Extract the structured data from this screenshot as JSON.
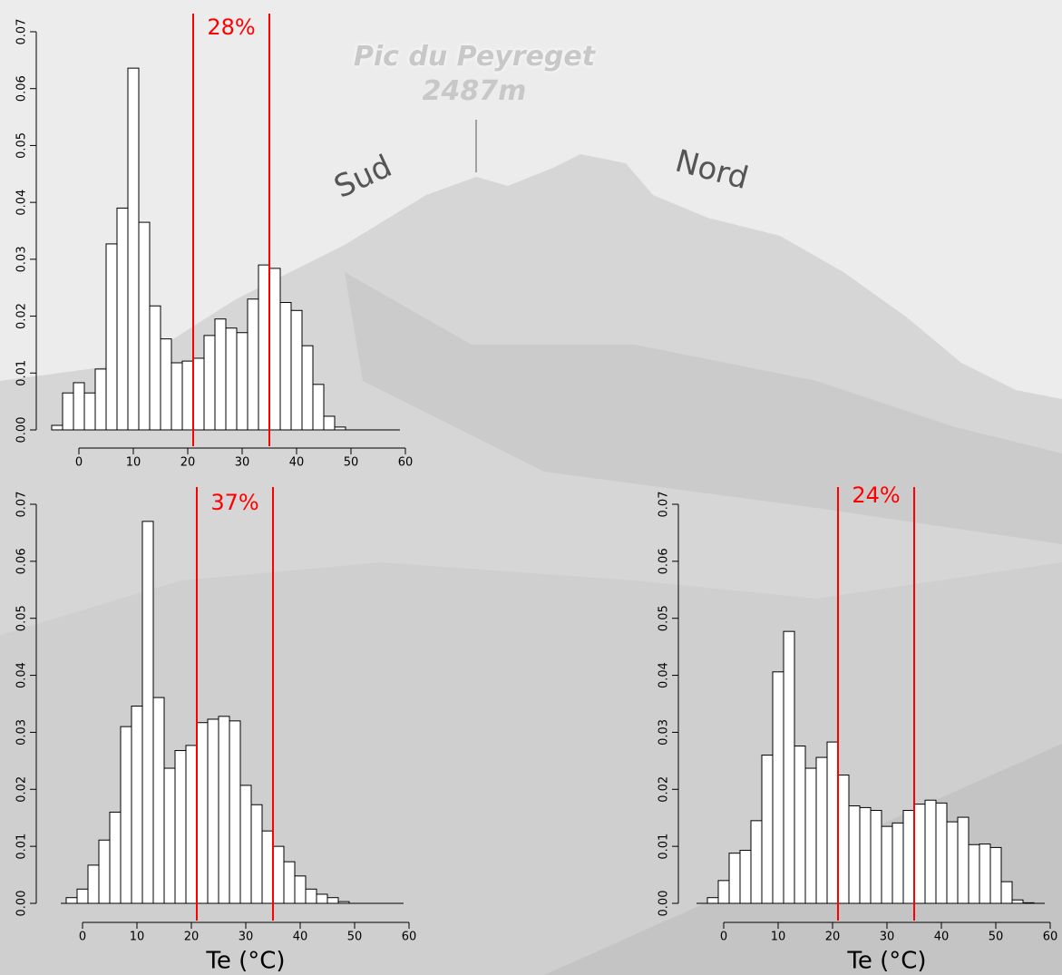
{
  "background": {
    "peak_name": "Pic du Peyreget",
    "elevation": "2487m",
    "left_label": "Sud",
    "right_label": "Nord"
  },
  "chart_data": [
    {
      "type": "histogram",
      "color": "#ffffff",
      "edge_color": "#000000",
      "bins": [
        -5,
        -3,
        -1,
        1,
        3,
        5,
        7,
        9,
        11,
        13,
        15,
        17,
        19,
        21,
        23,
        25,
        27,
        29,
        31,
        33,
        35,
        37,
        39,
        41,
        43,
        45,
        47,
        49
      ],
      "values": [
        0.0008,
        0.0065,
        0.0083,
        0.0065,
        0.0107,
        0.0327,
        0.039,
        0.0636,
        0.0365,
        0.0218,
        0.016,
        0.0118,
        0.0121,
        0.0126,
        0.0166,
        0.0195,
        0.0179,
        0.0171,
        0.023,
        0.029,
        0.0284,
        0.0224,
        0.021,
        0.0148,
        0.008,
        0.0024,
        0.0005
      ],
      "xlim": [
        -4,
        60
      ],
      "xticks": [
        0,
        10,
        20,
        30,
        40,
        50,
        60
      ],
      "ylim": [
        0,
        0.07
      ],
      "yticks": [
        {
          "value": 0,
          "label": "0.00"
        },
        0.01,
        0.02,
        0.03,
        0.04,
        0.05,
        0.06,
        0.07
      ],
      "vlines": [
        21,
        35
      ],
      "vline_color": "#ff0000",
      "annotation": "28%"
    },
    {
      "type": "histogram",
      "color": "#ffffff",
      "edge_color": "#000000",
      "bins": [
        -3,
        -1,
        1,
        3,
        5,
        7,
        9,
        11,
        13,
        15,
        17,
        19,
        21,
        23,
        25,
        27,
        29,
        31,
        33,
        35,
        37,
        39,
        41,
        43,
        45,
        47,
        49
      ],
      "values": [
        0.001,
        0.0025,
        0.0067,
        0.0111,
        0.016,
        0.031,
        0.0346,
        0.067,
        0.0361,
        0.0237,
        0.0268,
        0.0277,
        0.0317,
        0.0323,
        0.0328,
        0.032,
        0.0207,
        0.0173,
        0.0127,
        0.01,
        0.0073,
        0.0048,
        0.0025,
        0.0016,
        0.001,
        0.0003
      ],
      "xlim": [
        -4,
        60
      ],
      "xticks": [
        0,
        10,
        20,
        30,
        40,
        50,
        60
      ],
      "ylim": [
        0,
        0.07
      ],
      "yticks": [
        {
          "value": 0,
          "label": "0.00"
        },
        0.01,
        0.02,
        0.03,
        0.04,
        0.05,
        0.06,
        0.07
      ],
      "vlines": [
        21,
        35
      ],
      "vline_color": "#ff0000",
      "annotation": "37%",
      "xlabel": "Te (°C)"
    },
    {
      "type": "histogram",
      "color": "#ffffff",
      "edge_color": "#000000",
      "bins": [
        -3,
        -1,
        1,
        3,
        5,
        7,
        9,
        11,
        13,
        15,
        17,
        19,
        21,
        23,
        25,
        27,
        29,
        31,
        33,
        35,
        37,
        39,
        41,
        43,
        45,
        47,
        49,
        51,
        53,
        55,
        57
      ],
      "values": [
        0.001,
        0.004,
        0.0088,
        0.0093,
        0.0145,
        0.026,
        0.0406,
        0.0477,
        0.0276,
        0.0237,
        0.0256,
        0.0283,
        0.0225,
        0.0171,
        0.0168,
        0.0163,
        0.0135,
        0.0141,
        0.0163,
        0.0174,
        0.0181,
        0.0176,
        0.0143,
        0.0151,
        0.0103,
        0.0104,
        0.0098,
        0.0038,
        0.0006,
        0.0001
      ],
      "xlim": [
        -5,
        60
      ],
      "xticks": [
        0,
        10,
        20,
        30,
        40,
        50,
        60
      ],
      "ylim": [
        0,
        0.07
      ],
      "yticks": [
        {
          "value": 0,
          "label": "0.00"
        },
        0.01,
        0.02,
        0.03,
        0.04,
        0.05,
        0.06,
        0.07
      ],
      "vlines": [
        21,
        35
      ],
      "vline_color": "#ff0000",
      "annotation": "24%",
      "xlabel": "Te (°C)"
    }
  ]
}
